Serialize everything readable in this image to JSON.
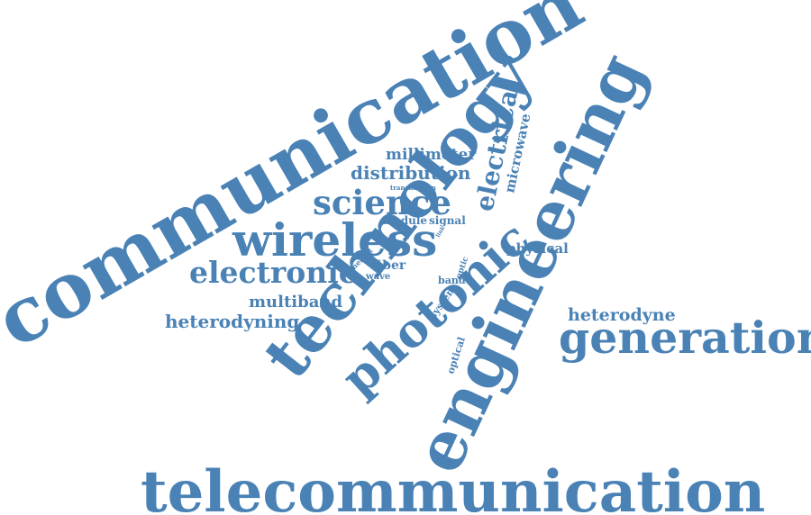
{
  "word_color": "#4a82b5",
  "background_color": "#ffffff",
  "words": {
    "communication": "communication",
    "telecommunication": "telecommunication",
    "engineering": "engineering",
    "technology": "technology",
    "photonic": "photonic",
    "generation": "generation",
    "wireless": "wireless",
    "science": "science",
    "electronic": "electronic",
    "distribution": "distribution",
    "millimeter": "millimeter",
    "electrical": "electrical",
    "microwave": "microwave",
    "transmission": "transmission",
    "module": "module",
    "signal": "signal",
    "link": "link",
    "station": "station",
    "physical": "physical",
    "coherent": "coherent",
    "fiber": "fiber",
    "wave": "wave",
    "optic": "optic",
    "band": "band",
    "multiband": "multiband",
    "heterodyning": "heterodyning",
    "system": "system",
    "optical": "optical",
    "heterodyne": "heterodyne"
  }
}
